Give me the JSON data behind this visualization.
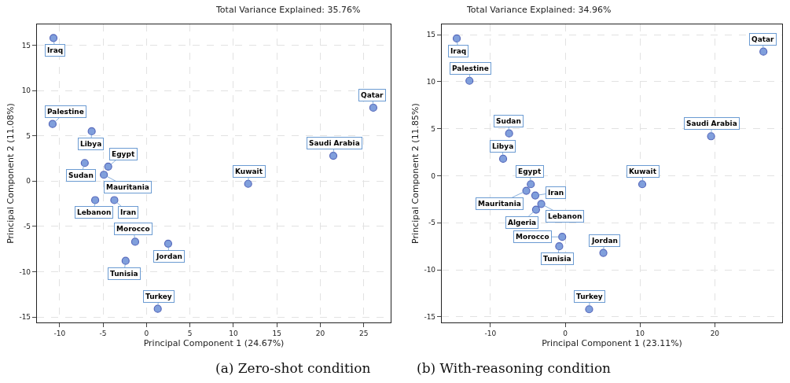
{
  "chart_data": [
    {
      "type": "scatter",
      "title": "Total Variance Explained: 35.76%",
      "xlabel": "Principal Component 1 (24.67%)",
      "ylabel": "Principal Component 2 (11.08%)",
      "xlim": [
        -12.6,
        28.1
      ],
      "ylim": [
        -15.6,
        17.3
      ],
      "xticks": [
        -10,
        -5,
        0,
        5,
        10,
        15,
        20,
        25
      ],
      "yticks": [
        -15,
        -10,
        -5,
        0,
        5,
        10,
        15
      ],
      "grid": true,
      "marker": "circle",
      "series": [
        {
          "color": "#6b8fd6",
          "x": [
            -10.7,
            -10.8,
            -6.3,
            26.1,
            21.5,
            -7.1,
            -4.4,
            -4.9,
            11.7,
            -5.9,
            -3.7,
            -1.3,
            2.5,
            -2.4,
            1.3
          ],
          "values": [
            15.8,
            6.3,
            5.5,
            8.1,
            2.8,
            2.0,
            1.6,
            0.7,
            -0.3,
            -2.1,
            -2.1,
            -6.7,
            -6.9,
            -8.8,
            -14.1
          ]
        }
      ],
      "annotations": [
        {
          "text": "Iraq",
          "x": -10.7,
          "y": 15.8
        },
        {
          "text": "Palestine",
          "x": -10.8,
          "y": 6.3
        },
        {
          "text": "Libya",
          "x": -6.3,
          "y": 5.5
        },
        {
          "text": "Qatar",
          "x": 26.1,
          "y": 8.1
        },
        {
          "text": "Saudi Arabia",
          "x": 21.5,
          "y": 2.8
        },
        {
          "text": "Sudan",
          "x": -7.1,
          "y": 2.0
        },
        {
          "text": "Egypt",
          "x": -4.4,
          "y": 1.6
        },
        {
          "text": "Mauritania",
          "x": -4.9,
          "y": 0.7
        },
        {
          "text": "Kuwait",
          "x": 11.7,
          "y": -0.3
        },
        {
          "text": "Lebanon",
          "x": -5.9,
          "y": -2.1
        },
        {
          "text": "Iran",
          "x": -3.7,
          "y": -2.1
        },
        {
          "text": "Morocco",
          "x": -1.3,
          "y": -6.7
        },
        {
          "text": "Jordan",
          "x": 2.5,
          "y": -6.9
        },
        {
          "text": "Tunisia",
          "x": -2.4,
          "y": -8.8
        },
        {
          "text": "Turkey",
          "x": 1.3,
          "y": -14.1
        },
        "(a) Zero-shot condition"
      ]
    },
    {
      "type": "scatter",
      "title": "Total Variance Explained: 34.96%",
      "xlabel": "Principal Component 1 (23.11%)",
      "ylabel": "Principal Component 2 (11.85%)",
      "xlim": [
        -16.5,
        29
      ],
      "ylim": [
        -15.6,
        16.1
      ],
      "xticks": [
        -10,
        0,
        10,
        20
      ],
      "yticks": [
        -15,
        -10,
        -5,
        0,
        5,
        10,
        15
      ],
      "grid": true,
      "marker": "circle",
      "series": [
        {
          "color": "#6b8fd6",
          "x": [
            -14.5,
            -12.8,
            26.5,
            -7.5,
            19.5,
            -8.3,
            10.3,
            -4.6,
            -5.2,
            -4.0,
            -3.2,
            -3.9,
            -0.4,
            -0.8,
            5.1,
            3.2
          ],
          "values": [
            14.6,
            10.1,
            13.2,
            4.5,
            4.2,
            1.8,
            -0.9,
            -0.9,
            -1.6,
            -2.1,
            -3.0,
            -3.6,
            -6.5,
            -7.5,
            -8.2,
            -14.2
          ]
        }
      ],
      "annotations": [
        {
          "text": "Iraq",
          "x": -14.5,
          "y": 14.6
        },
        {
          "text": "Palestine",
          "x": -12.8,
          "y": 10.1
        },
        {
          "text": "Qatar",
          "x": 26.5,
          "y": 13.2
        },
        {
          "text": "Sudan",
          "x": -7.5,
          "y": 4.5
        },
        {
          "text": "Saudi Arabia",
          "x": 19.5,
          "y": 4.2
        },
        {
          "text": "Libya",
          "x": -8.3,
          "y": 1.8
        },
        {
          "text": "Kuwait",
          "x": 10.3,
          "y": -0.9
        },
        {
          "text": "Egypt",
          "x": -4.6,
          "y": -0.9
        },
        {
          "text": "Mauritania",
          "x": -5.2,
          "y": -1.6
        },
        {
          "text": "Iran",
          "x": -4.0,
          "y": -2.1
        },
        {
          "text": "Lebanon",
          "x": -3.2,
          "y": -3.0
        },
        {
          "text": "Algeria",
          "x": -3.9,
          "y": -3.6
        },
        {
          "text": "Morocco",
          "x": -0.4,
          "y": -6.5
        },
        {
          "text": "Tunisia",
          "x": -0.8,
          "y": -7.5
        },
        {
          "text": "Jordan",
          "x": 5.1,
          "y": -8.2
        },
        {
          "text": "Turkey",
          "x": 3.2,
          "y": -14.2
        },
        "(b) With-reasoning condition"
      ]
    }
  ]
}
